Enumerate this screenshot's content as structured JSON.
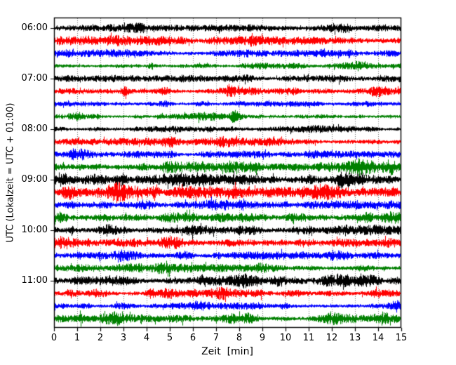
{
  "chart_data": {
    "type": "line",
    "variant": "helicorder_dayplot_seismogram",
    "title": "",
    "xlabel": "Zeit  [min]",
    "ylabel": "UTC (Lokalzeit = UTC + 01:00)",
    "x_ticks": [
      "0",
      "1",
      "2",
      "3",
      "4",
      "5",
      "6",
      "7",
      "8",
      "9",
      "10",
      "11",
      "12",
      "13",
      "14",
      "15"
    ],
    "x_range": [
      0,
      15
    ],
    "minutes_per_row": 15,
    "y_tick_labels": [
      "06:00",
      "07:00",
      "08:00",
      "09:00",
      "10:00",
      "11:00"
    ],
    "rows_per_hour": 4,
    "grid": {
      "vertical_dotted_per_minute": true,
      "color": "#777777"
    },
    "frame_color": "#000000",
    "color_cycle": [
      "#000000",
      "#ff0000",
      "#0000ff",
      "#008000"
    ],
    "rows": [
      {
        "start": "06:00",
        "color": "#000000",
        "amp": 3.4,
        "bursts": [
          [
            3.9,
            0.5,
            3.2
          ],
          [
            4.4,
            0.2,
            2.2
          ],
          [
            10.2,
            0.25,
            1.6
          ],
          [
            12.4,
            0.35,
            1.6
          ]
        ]
      },
      {
        "start": "06:15",
        "color": "#ff0000",
        "amp": 4.4,
        "bursts": [
          [
            2.7,
            0.3,
            1.2
          ],
          [
            8.6,
            0.2,
            1.5
          ],
          [
            13.0,
            0.3,
            1.0
          ]
        ]
      },
      {
        "start": "06:30",
        "color": "#0000ff",
        "amp": 3.8,
        "bursts": [
          [
            3.5,
            0.3,
            1.2
          ],
          [
            10.3,
            0.25,
            1.5
          ]
        ]
      },
      {
        "start": "06:45",
        "color": "#008000",
        "amp": 3.0,
        "bursts": [
          [
            4.2,
            0.08,
            3.0
          ],
          [
            10.8,
            0.4,
            1.3
          ],
          [
            13.1,
            0.3,
            1.8
          ]
        ]
      },
      {
        "start": "07:00",
        "color": "#000000",
        "amp": 3.4,
        "bursts": [
          [
            8.4,
            0.4,
            1.2
          ]
        ]
      },
      {
        "start": "07:15",
        "color": "#ff0000",
        "amp": 3.9,
        "bursts": [
          [
            3.0,
            0.12,
            3.5
          ],
          [
            4.6,
            0.3,
            1.8
          ],
          [
            7.6,
            0.12,
            3.8
          ],
          [
            10.4,
            0.2,
            2.2
          ],
          [
            13.9,
            0.25,
            1.8
          ]
        ]
      },
      {
        "start": "07:30",
        "color": "#0000ff",
        "amp": 3.0,
        "bursts": [
          [
            0.6,
            0.1,
            2.6
          ],
          [
            2.0,
            0.15,
            2.2
          ],
          [
            4.7,
            0.2,
            1.8
          ],
          [
            8.0,
            0.15,
            1.8
          ],
          [
            13.6,
            0.2,
            1.5
          ]
        ]
      },
      {
        "start": "07:45",
        "color": "#008000",
        "amp": 3.0,
        "bursts": [
          [
            0.9,
            0.2,
            2.6
          ],
          [
            1.8,
            0.2,
            2.6
          ],
          [
            6.6,
            0.3,
            1.4
          ],
          [
            7.8,
            0.1,
            5.5
          ]
        ]
      },
      {
        "start": "08:00",
        "color": "#000000",
        "amp": 3.0,
        "bursts": [
          [
            5.0,
            0.4,
            1.0
          ],
          [
            11.5,
            0.4,
            0.8
          ]
        ]
      },
      {
        "start": "08:15",
        "color": "#ff0000",
        "amp": 3.5,
        "bursts": [
          [
            4.8,
            0.35,
            2.8
          ],
          [
            7.5,
            0.5,
            1.8
          ],
          [
            9.2,
            0.35,
            1.4
          ]
        ]
      },
      {
        "start": "08:30",
        "color": "#0000ff",
        "amp": 3.5,
        "bursts": [
          [
            1.0,
            0.3,
            2.4
          ],
          [
            6.8,
            0.3,
            1.2
          ],
          [
            11.3,
            0.2,
            1.8
          ]
        ]
      },
      {
        "start": "08:45",
        "color": "#008000",
        "amp": 5.4,
        "bursts": [
          [
            0.3,
            0.3,
            2.0
          ],
          [
            7.0,
            0.5,
            1.2
          ],
          [
            13.2,
            0.25,
            3.8
          ],
          [
            14.6,
            0.2,
            3.6
          ]
        ]
      },
      {
        "start": "09:00",
        "color": "#000000",
        "amp": 6.4,
        "bursts": [
          [
            0.4,
            0.4,
            5.5
          ],
          [
            1.9,
            0.2,
            3.5
          ],
          [
            2.9,
            0.3,
            2.8
          ],
          [
            3.8,
            0.35,
            2.6
          ],
          [
            12.8,
            0.6,
            2.8
          ],
          [
            13.9,
            0.35,
            2.6
          ]
        ]
      },
      {
        "start": "09:15",
        "color": "#ff0000",
        "amp": 5.8,
        "bursts": [
          [
            0.6,
            0.25,
            3.8
          ],
          [
            2.6,
            0.3,
            3.6
          ],
          [
            3.5,
            0.35,
            2.8
          ],
          [
            4.3,
            0.25,
            2.6
          ],
          [
            7.2,
            0.3,
            2.6
          ],
          [
            11.7,
            0.3,
            2.2
          ]
        ]
      },
      {
        "start": "09:30",
        "color": "#0000ff",
        "amp": 4.8,
        "bursts": [
          [
            0.8,
            0.25,
            3.6
          ],
          [
            4.0,
            0.3,
            2.6
          ],
          [
            9.5,
            0.35,
            1.8
          ]
        ]
      },
      {
        "start": "09:45",
        "color": "#008000",
        "amp": 5.4,
        "bursts": [
          [
            0.3,
            0.15,
            4.5
          ],
          [
            2.1,
            0.3,
            2.6
          ],
          [
            6.5,
            0.4,
            1.8
          ],
          [
            13.5,
            0.45,
            2.6
          ]
        ]
      },
      {
        "start": "10:00",
        "color": "#000000",
        "amp": 5.0,
        "bursts": [
          [
            0.75,
            0.07,
            7.5
          ],
          [
            2.3,
            0.35,
            1.8
          ],
          [
            8.2,
            0.5,
            1.8
          ],
          [
            12.5,
            0.5,
            1.8
          ]
        ]
      },
      {
        "start": "10:15",
        "color": "#ff0000",
        "amp": 4.8,
        "bursts": [
          [
            0.3,
            0.3,
            4.5
          ],
          [
            1.5,
            0.2,
            2.8
          ],
          [
            5.2,
            0.35,
            2.6
          ],
          [
            10.5,
            0.7,
            1.6
          ],
          [
            14.5,
            0.25,
            2.6
          ]
        ]
      },
      {
        "start": "10:30",
        "color": "#0000ff",
        "amp": 3.9,
        "bursts": [
          [
            3.0,
            0.35,
            1.8
          ],
          [
            5.7,
            0.2,
            2.8
          ],
          [
            7.1,
            0.3,
            1.6
          ],
          [
            12.0,
            0.3,
            1.3
          ]
        ]
      },
      {
        "start": "10:45",
        "color": "#008000",
        "amp": 3.9,
        "bursts": [
          [
            3.3,
            0.35,
            1.9
          ],
          [
            4.6,
            0.3,
            1.9
          ],
          [
            9.0,
            0.3,
            1.4
          ],
          [
            13.4,
            0.3,
            1.3
          ]
        ]
      },
      {
        "start": "11:00",
        "color": "#000000",
        "amp": 4.4,
        "bursts": [
          [
            2.3,
            0.25,
            2.8
          ],
          [
            3.3,
            0.25,
            2.3
          ],
          [
            6.4,
            0.35,
            2.8
          ],
          [
            8.1,
            0.4,
            2.3
          ],
          [
            9.8,
            0.25,
            1.9
          ],
          [
            12.3,
            0.5,
            3.2
          ],
          [
            13.4,
            0.35,
            2.8
          ]
        ]
      },
      {
        "start": "11:15",
        "color": "#ff0000",
        "amp": 3.9,
        "bursts": [
          [
            0.7,
            0.12,
            2.8
          ],
          [
            1.9,
            0.25,
            2.8
          ],
          [
            4.2,
            0.2,
            3.2
          ],
          [
            5.0,
            0.18,
            2.3
          ],
          [
            7.2,
            0.35,
            2.8
          ],
          [
            13.9,
            0.25,
            1.9
          ]
        ]
      },
      {
        "start": "11:30",
        "color": "#0000ff",
        "amp": 3.4,
        "bursts": [
          [
            1.3,
            0.2,
            1.9
          ],
          [
            3.2,
            0.25,
            2.3
          ],
          [
            6.3,
            0.25,
            2.3
          ],
          [
            9.9,
            0.2,
            1.9
          ],
          [
            14.8,
            0.15,
            2.3
          ]
        ]
      },
      {
        "start": "11:45",
        "color": "#008000",
        "amp": 3.9,
        "bursts": [
          [
            1.2,
            0.3,
            1.9
          ],
          [
            2.6,
            0.35,
            2.8
          ],
          [
            7.8,
            0.25,
            4.5
          ],
          [
            8.5,
            0.2,
            6.5
          ],
          [
            12.2,
            0.35,
            1.9
          ],
          [
            14.2,
            0.25,
            2.3
          ]
        ]
      }
    ]
  }
}
